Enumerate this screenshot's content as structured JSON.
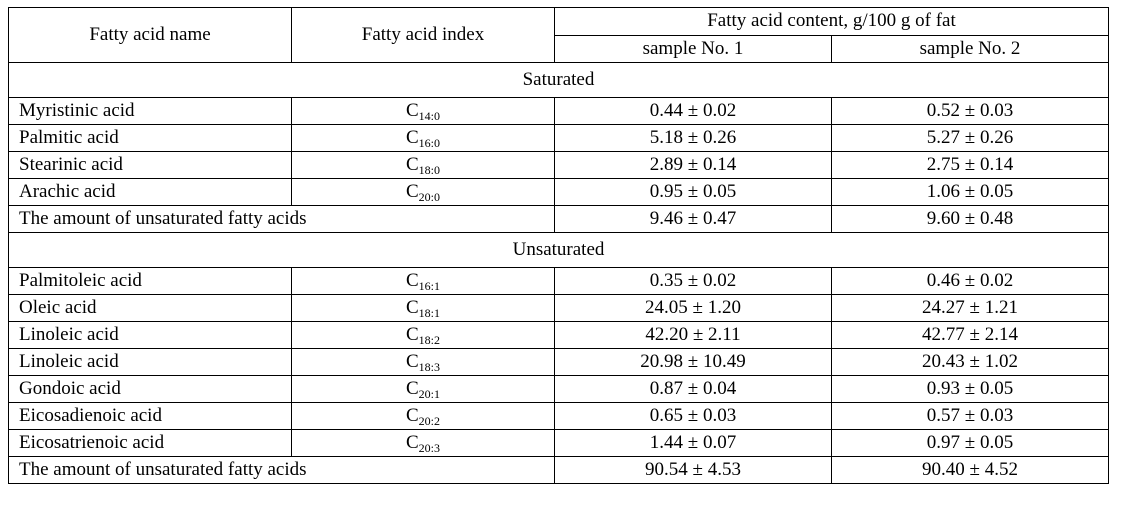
{
  "table": {
    "headers": {
      "name": "Fatty acid name",
      "index": "Fatty acid index",
      "content": "Fatty acid content, g/100 g of fat",
      "sample1": "sample No. 1",
      "sample2": "sample No. 2"
    },
    "saturated": {
      "title": "Saturated",
      "rows": [
        {
          "name": "Myristinic acid",
          "c": "C",
          "sub": "14:0",
          "s1": "0.44 ± 0.02",
          "s2": "0.52 ± 0.03"
        },
        {
          "name": "Palmitic acid",
          "c": "C",
          "sub": "16:0",
          "s1": "5.18 ± 0.26",
          "s2": "5.27 ± 0.26"
        },
        {
          "name": "Stearinic acid",
          "c": "C",
          "sub": "18:0",
          "s1": "2.89 ± 0.14",
          "s2": "2.75 ± 0.14"
        },
        {
          "name": "Arachic acid",
          "c": "C",
          "sub": "20:0",
          "s1": "0.95 ± 0.05",
          "s2": "1.06 ± 0.05"
        }
      ],
      "total": {
        "label": "The amount of unsaturated fatty acids",
        "s1": "9.46 ± 0.47",
        "s2": "9.60 ± 0.48"
      }
    },
    "unsaturated": {
      "title": "Unsaturated",
      "rows": [
        {
          "name": "Palmitoleic acid",
          "c": "C",
          "sub": "16:1",
          "s1": "0.35 ± 0.02",
          "s2": "0.46 ± 0.02"
        },
        {
          "name": "Oleic acid",
          "c": "C",
          "sub": "18:1",
          "s1": "24.05 ± 1.20",
          "s2": "24.27 ± 1.21"
        },
        {
          "name": "Linoleic acid",
          "c": "C",
          "sub": "18:2",
          "s1": "42.20 ± 2.11",
          "s2": "42.77 ± 2.14"
        },
        {
          "name": "Linoleic acid",
          "c": "C",
          "sub": "18:3",
          "s1": "20.98 ± 10.49",
          "s2": "20.43 ± 1.02"
        },
        {
          "name": "Gondoic acid",
          "c": "C",
          "sub": "20:1",
          "s1": "0.87 ± 0.04",
          "s2": "0.93 ± 0.05"
        },
        {
          "name": "Eicosadienoic acid",
          "c": "C",
          "sub": "20:2",
          "s1": "0.65 ± 0.03",
          "s2": "0.57 ± 0.03"
        },
        {
          "name": "Eicosatrienoic acid",
          "c": "C",
          "sub": "20:3",
          "s1": "1.44 ± 0.07",
          "s2": "0.97 ± 0.05"
        }
      ],
      "total": {
        "label": "The amount of unsaturated fatty acids",
        "s1": "90.54 ± 4.53",
        "s2": "90.40 ± 4.52"
      }
    }
  }
}
